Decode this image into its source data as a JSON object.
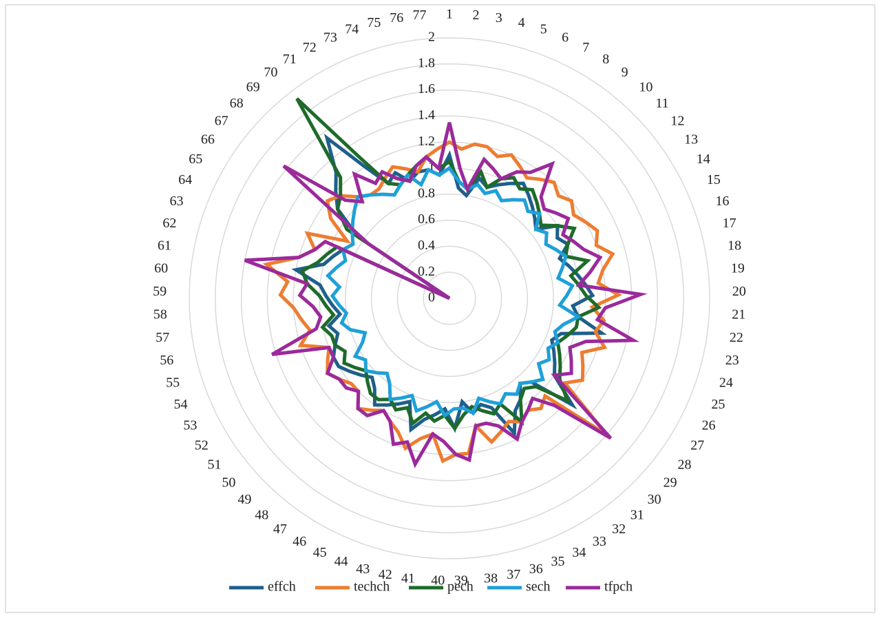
{
  "chart_data": {
    "type": "radar",
    "categories": [
      "1",
      "2",
      "3",
      "4",
      "5",
      "6",
      "7",
      "8",
      "9",
      "10",
      "11",
      "12",
      "13",
      "14",
      "15",
      "16",
      "17",
      "18",
      "19",
      "20",
      "21",
      "22",
      "23",
      "24",
      "25",
      "26",
      "27",
      "28",
      "29",
      "30",
      "31",
      "32",
      "33",
      "34",
      "35",
      "36",
      "37",
      "38",
      "39",
      "40",
      "41",
      "42",
      "43",
      "44",
      "45",
      "46",
      "47",
      "48",
      "49",
      "50",
      "51",
      "52",
      "53",
      "54",
      "55",
      "56",
      "57",
      "58",
      "59",
      "60",
      "61",
      "62",
      "63",
      "64",
      "65",
      "66",
      "67",
      "68",
      "69",
      "70",
      "71",
      "72",
      "73",
      "74",
      "75",
      "76",
      "77"
    ],
    "rlim": [
      0,
      2
    ],
    "rticks": [
      0,
      0.2,
      0.4,
      0.6,
      0.8,
      1,
      1.2,
      1.4,
      1.6,
      1.8,
      2
    ],
    "grid": true,
    "legend": "bottom",
    "series": [
      {
        "name": "effch",
        "color": "#1f5f8b",
        "values": [
          1.1,
          0.85,
          0.8,
          0.95,
          0.9,
          0.95,
          1.0,
          1.05,
          1.0,
          0.95,
          0.9,
          0.85,
          1.0,
          0.95,
          1.0,
          0.9,
          0.95,
          1.0,
          1.05,
          1.1,
          0.95,
          1.0,
          1.2,
          0.9,
          0.85,
          0.9,
          0.95,
          1.0,
          1.25,
          0.9,
          0.85,
          0.95,
          1.0,
          1.15,
          0.9,
          0.85,
          0.9,
          0.8,
          1.0,
          0.85,
          0.9,
          0.95,
          1.05,
          0.85,
          0.9,
          0.95,
          1.0,
          0.9,
          0.85,
          0.9,
          0.95,
          1.0,
          1.0,
          0.95,
          0.9,
          0.95,
          0.85,
          0.9,
          0.95,
          1.0,
          1.2,
          1.0,
          0.95,
          0.9,
          0,
          0.85,
          1.1,
          1.2,
          1.3,
          1.55,
          1.2,
          1.0,
          1.05,
          0.95,
          1.0,
          1.0,
          0.95
        ]
      },
      {
        "name": "techch",
        "color": "#ed7d31",
        "values": [
          1.2,
          1.15,
          1.2,
          1.2,
          1.15,
          1.2,
          1.15,
          1.1,
          1.15,
          1.2,
          1.15,
          1.2,
          1.15,
          1.2,
          1.25,
          1.2,
          1.3,
          1.2,
          1.15,
          1.3,
          1.1,
          1.2,
          1.15,
          1.25,
          1.1,
          1.15,
          1.2,
          1.1,
          1.6,
          1.05,
          1.1,
          1.05,
          1.1,
          1.05,
          1.1,
          1.15,
          1.0,
          1.2,
          1.2,
          1.25,
          1.05,
          1.1,
          1.2,
          1.1,
          1.05,
          1.0,
          1.05,
          1.1,
          1.0,
          1.0,
          1.05,
          1.1,
          1.05,
          1.0,
          1.2,
          1.1,
          1.15,
          1.2,
          1.3,
          1.25,
          1.43,
          1.2,
          1.1,
          1.2,
          0.9,
          1.1,
          1.2,
          1.15,
          1.05,
          1.0,
          1.0,
          1.05,
          1.1,
          1.05,
          1.0,
          1.1,
          1.15
        ]
      },
      {
        "name": "pech",
        "color": "#1e6b2a",
        "values": [
          1.05,
          0.9,
          0.85,
          1.0,
          0.9,
          1.0,
          1.05,
          1.0,
          1.05,
          1.0,
          0.95,
          0.9,
          1.0,
          1.1,
          1.0,
          0.95,
          1.1,
          0.95,
          1.0,
          1.05,
          1.15,
          1.0,
          1.0,
          0.95,
          0.9,
          0.95,
          1.0,
          1.05,
          1.2,
          0.95,
          0.9,
          0.95,
          1.1,
          0.9,
          0.95,
          0.9,
          0.85,
          0.9,
          1.0,
          0.9,
          0.95,
          0.9,
          1.0,
          0.9,
          0.95,
          0.9,
          0.95,
          0.95,
          0.9,
          0.85,
          0.9,
          0.95,
          0.9,
          0.95,
          0.95,
          1.0,
          0.9,
          0.95,
          1.0,
          1.1,
          1.15,
          1.05,
          1.0,
          0.95,
          0,
          0.95,
          1.1,
          1.15,
          1.25,
          1.93,
          1.3,
          1.0,
          0.95,
          1.0,
          1.05,
          1.1,
          1.0
        ]
      },
      {
        "name": "sech",
        "color": "#1fa0d8",
        "values": [
          1.0,
          0.9,
          0.85,
          0.9,
          0.85,
          0.9,
          0.85,
          0.9,
          0.95,
          0.9,
          0.95,
          0.85,
          0.9,
          0.85,
          0.9,
          0.95,
          0.9,
          0.85,
          0.95,
          0.9,
          0.85,
          1.0,
          0.9,
          0.85,
          0.9,
          0.85,
          0.9,
          0.85,
          0.95,
          0.9,
          0.85,
          0.9,
          0.85,
          0.9,
          0.85,
          0.8,
          0.9,
          0.85,
          0.85,
          0.9,
          0.8,
          0.85,
          0.9,
          0.8,
          0.85,
          0.9,
          0.8,
          0.75,
          0.8,
          0.85,
          0.8,
          0.85,
          0.75,
          0.7,
          0.8,
          0.85,
          0.8,
          0.85,
          0.9,
          0.85,
          0.95,
          0.9,
          0.85,
          0.9,
          0.85,
          0.9,
          0.95,
          1.0,
          1.05,
          1.0,
          0.95,
          0.9,
          0.95,
          1.0,
          0.9,
          1.0,
          0.95
        ]
      },
      {
        "name": "tfpch",
        "color": "#9b2a9b",
        "values": [
          1.35,
          1.0,
          0.85,
          1.1,
          1.05,
          1.0,
          1.1,
          1.15,
          1.3,
          1.05,
          1.0,
          1.05,
          1.1,
          1.0,
          1.05,
          1.1,
          1.2,
          1.1,
          1.0,
          1.47,
          1.2,
          1.15,
          1.45,
          1.1,
          1.0,
          1.05,
          1.1,
          1.0,
          1.64,
          1.15,
          1.0,
          1.05,
          1.1,
          1.2,
          1.05,
          1.0,
          1.0,
          1.25,
          1.2,
          1.1,
          1.05,
          1.3,
          1.15,
          1.2,
          1.05,
          1.0,
          1.1,
          1.1,
          1.0,
          1.05,
          1.05,
          1.1,
          1.0,
          1.0,
          1.43,
          1.05,
          1.0,
          1.05,
          1.15,
          1.1,
          1.6,
          1.2,
          1.1,
          1.05,
          0,
          0.75,
          1.63,
          1.1,
          1.0,
          1.2,
          1.05,
          1.1,
          1.0,
          0.95,
          1.05,
          1.1,
          1.0
        ]
      }
    ]
  }
}
